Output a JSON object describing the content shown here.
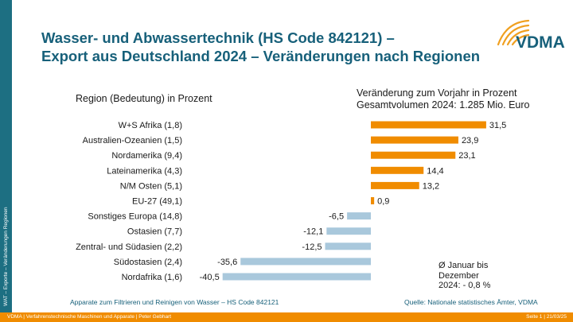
{
  "slide": {
    "title_line1": "Wasser- und Abwassertechnik (HS Code 842121) –",
    "title_line2": "Export aus Deutschland 2024 – Veränderungen nach Regionen",
    "side_label": "WAT – Exporte – Veränderungen Regionen",
    "logo_text": "VDMA"
  },
  "chart_data": {
    "type": "bar",
    "orientation": "horizontal",
    "category_header": "Region (Bedeutung) in Prozent",
    "value_header_line1": "Veränderung zum Vorjahr in Prozent",
    "value_header_line2": "Gesamtvolumen 2024: 1.285 Mio. Euro",
    "categories": [
      "W+S Afrika (1,8)",
      "Australien-Ozeanien (1,5)",
      "Nordamerika (9,4)",
      "Lateinamerika (4,3)",
      "N/M Osten (5,1)",
      "EU-27 (49,1)",
      "Sonstiges Europa (14,8)",
      "Ostasien (7,7)",
      "Zentral- und Südasien (2,2)",
      "Südostasien (2,4)",
      "Nordafrika (1,6)"
    ],
    "values": [
      31.5,
      23.9,
      23.1,
      14.4,
      13.2,
      0.9,
      -6.5,
      -12.1,
      -12.5,
      -35.6,
      -40.5
    ],
    "value_labels": [
      "31,5",
      "23,9",
      "23,1",
      "14,4",
      "13,2",
      "0,9",
      "-6,5",
      "-12,1",
      "-12,5",
      "-35,6",
      "-40,5"
    ],
    "positive_color": "#f08c00",
    "negative_color": "#a9c8dc",
    "note_lines": [
      "Ø Januar bis",
      "Dezember",
      "2024: - 0,8 %"
    ]
  },
  "footer": {
    "left": "VDMA | Verfahrenstechnische Maschinen und Apparate | Peter Gebhart",
    "right": "Seite 1 | 21/03/25",
    "source_left": "Apparate zum Filtrieren und Reinigen von Wasser – HS Code 842121",
    "source_right": "Quelle: Nationale statistisches Ämter, VDMA"
  }
}
